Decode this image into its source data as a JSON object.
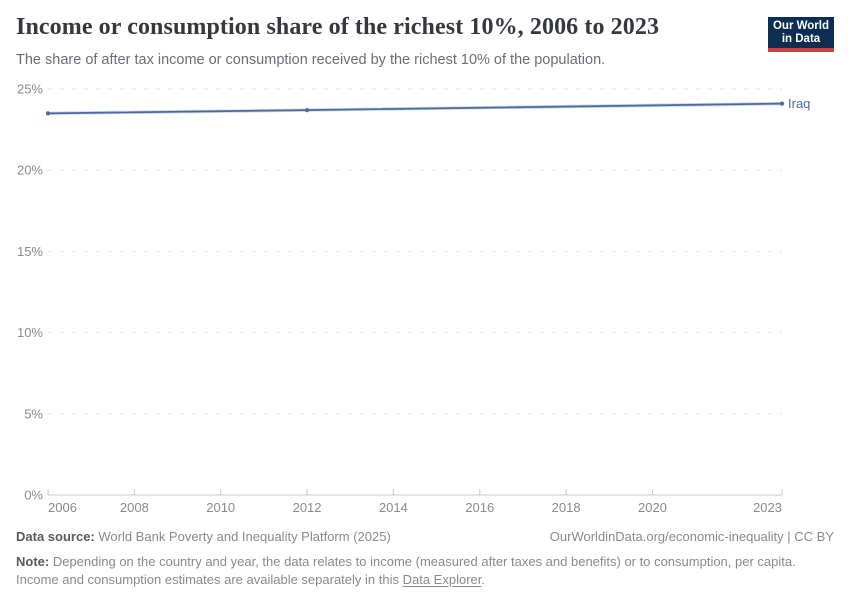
{
  "header": {
    "title": "Income or consumption share of the richest 10%, 2006 to 2023",
    "subtitle": "The share of after tax income or consumption received by the richest 10% of the population.",
    "logo": {
      "line1": "Our World",
      "line2": "in Data"
    }
  },
  "chart_data": {
    "type": "line",
    "title": "Income or consumption share of the richest 10%, 2006 to 2023",
    "xlabel": "",
    "ylabel": "",
    "x": {
      "min": 2006,
      "max": 2023,
      "ticks": [
        2006,
        2008,
        2010,
        2012,
        2014,
        2016,
        2018,
        2020,
        2023
      ]
    },
    "y": {
      "min": 0,
      "max": 25,
      "ticks": [
        0,
        5,
        10,
        15,
        20,
        25
      ],
      "unit": "%"
    },
    "grid": "horizontal-dashed",
    "legend_position": "end-of-line",
    "series": [
      {
        "name": "Iraq",
        "color": "#4C6A9C",
        "points": [
          {
            "x": 2006,
            "y": 23.5
          },
          {
            "x": 2012,
            "y": 23.7
          },
          {
            "x": 2023,
            "y": 24.1
          }
        ]
      }
    ]
  },
  "footer": {
    "datasource_label": "Data source:",
    "datasource_text": " World Bank Poverty and Inequality Platform (2025)",
    "attribution": "OurWorldinData.org/economic-inequality | CC BY",
    "note_label": "Note:",
    "note_before_link": " Depending on the country and year, the data relates to income (measured after taxes and benefits) or to consumption, per capita. Income and consumption estimates are available separately in this ",
    "note_link": "Data Explorer",
    "note_after_link": "."
  },
  "colors": {
    "accent": "#4C6A9C",
    "logo_bg": "#0D2D52",
    "logo_red": "#CF3E41",
    "grid": "#E2E2E2",
    "axis": "#C8C8C8",
    "tick_label": "#8A8A8A"
  }
}
